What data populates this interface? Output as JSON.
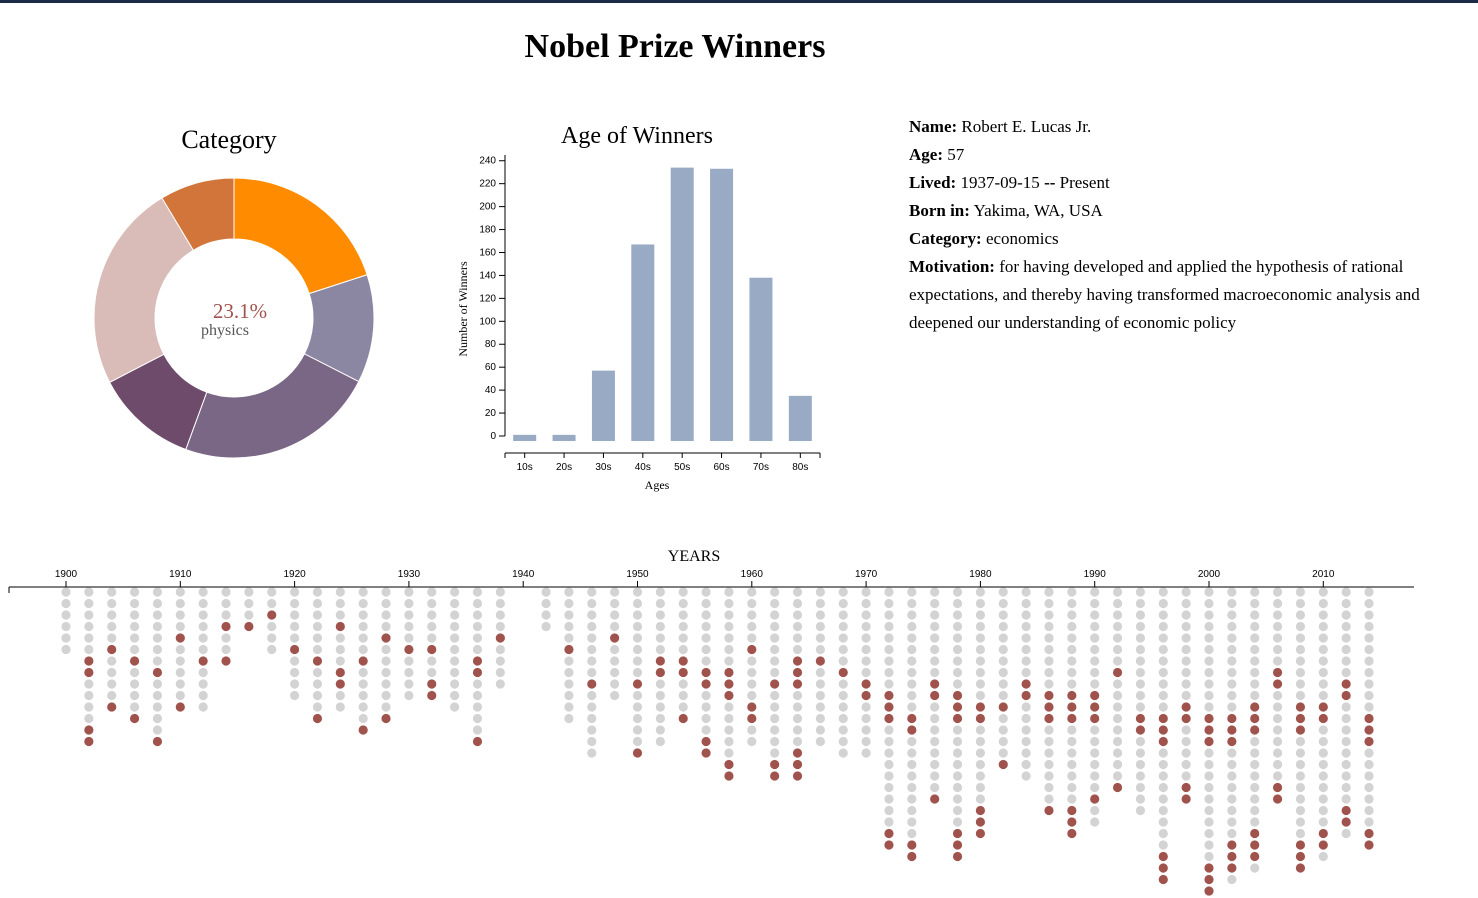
{
  "page": {
    "title": "Nobel Prize Winners"
  },
  "info": {
    "name_label": "Name:",
    "name": "Robert E. Lucas Jr.",
    "age_label": "Age:",
    "age": "57",
    "lived_label": "Lived:",
    "lived_from": "1937-09-15",
    "lived_sep": "--",
    "lived_to": "Present",
    "born_label": "Born in:",
    "born": "Yakima, WA, USA",
    "category_label": "Category:",
    "category": "economics",
    "motivation_label": "Motivation:",
    "motivation": "for having developed and applied the hypothesis of rational expectations, and thereby having transformed macroeconomic analysis and deepened our understanding of economic policy"
  },
  "colors": {
    "histogram_bar": "#98aac4",
    "dot_default": "#d3d3d3",
    "dot_highlight": "#a0534d",
    "center_percent": "#a0534d",
    "topbar": "#1b2a47"
  },
  "chart_data": [
    {
      "type": "pie",
      "variant": "donut",
      "title": "Category",
      "center_value": "23.1%",
      "center_label": "physics",
      "slices": [
        {
          "value": 20.0,
          "color": "#ff8c00"
        },
        {
          "value": 12.5,
          "color": "#8b87a2"
        },
        {
          "value": 23.1,
          "color": "#7a6685"
        },
        {
          "value": 11.8,
          "color": "#6e4a6b"
        },
        {
          "value": 24.0,
          "color": "#d9bcb7"
        },
        {
          "value": 8.6,
          "color": "#d2753b"
        }
      ]
    },
    {
      "type": "bar",
      "title": "Age of Winners",
      "xlabel": "Ages",
      "ylabel": "Number of Winners",
      "categories": [
        "10s",
        "20s",
        "30s",
        "40s",
        "50s",
        "60s",
        "70s",
        "80s"
      ],
      "values": [
        1,
        1,
        57,
        167,
        234,
        233,
        138,
        35
      ],
      "ylim": [
        0,
        245
      ],
      "yticks": [
        0,
        20,
        40,
        60,
        80,
        100,
        120,
        140,
        160,
        180,
        200,
        220,
        240
      ]
    },
    {
      "type": "scatter",
      "variant": "dot-timeline",
      "xlabel": "YEARS",
      "xticks": [
        1900,
        1910,
        1920,
        1930,
        1940,
        1950,
        1960,
        1970,
        1980,
        1990,
        2000,
        2010
      ],
      "xlim": [
        1900,
        2014
      ],
      "years": [
        1900,
        1902,
        1904,
        1906,
        1908,
        1910,
        1912,
        1914,
        1916,
        1918,
        1920,
        1922,
        1924,
        1926,
        1928,
        1930,
        1932,
        1934,
        1936,
        1938,
        1942,
        1944,
        1946,
        1948,
        1950,
        1952,
        1954,
        1956,
        1958,
        1960,
        1962,
        1964,
        1966,
        1968,
        1970,
        1972,
        1974,
        1976,
        1978,
        1980,
        1982,
        1984,
        1986,
        1988,
        1990,
        1992,
        1994,
        1996,
        1998,
        2000,
        2002,
        2004,
        2006,
        2008,
        2010,
        2012,
        2014
      ],
      "counts": [
        6,
        14,
        11,
        12,
        14,
        11,
        11,
        7,
        4,
        6,
        10,
        12,
        11,
        13,
        12,
        10,
        10,
        11,
        14,
        9,
        4,
        12,
        15,
        10,
        15,
        14,
        12,
        15,
        17,
        14,
        17,
        17,
        14,
        15,
        15,
        23,
        24,
        19,
        24,
        22,
        16,
        17,
        20,
        22,
        21,
        18,
        20,
        26,
        19,
        27,
        26,
        25,
        19,
        25,
        24,
        22,
        23
      ],
      "highlighted": [
        [
          6
        ],
        [
          6,
          7,
          12,
          13,
          14
        ],
        [
          5,
          10
        ],
        [
          6,
          11
        ],
        [
          7,
          13,
          14
        ],
        [
          4,
          10
        ],
        [
          6,
          11
        ],
        [
          3,
          6,
          7
        ],
        [
          3
        ],
        [
          2,
          6
        ],
        [
          5,
          10
        ],
        [
          6,
          11
        ],
        [
          3,
          7,
          8
        ],
        [
          6,
          12,
          13
        ],
        [
          4,
          11
        ],
        [
          5
        ],
        [
          5,
          8,
          9
        ],
        [
          11
        ],
        [
          6,
          7,
          13,
          14
        ],
        [
          4,
          9
        ],
        [
          4
        ],
        [
          5,
          12
        ],
        [
          8,
          15
        ],
        [
          4,
          10
        ],
        [
          8,
          14,
          15
        ],
        [
          6,
          7,
          14
        ],
        [
          6,
          7,
          11,
          12
        ],
        [
          7,
          8,
          13,
          14
        ],
        [
          7,
          8,
          9,
          15,
          16
        ],
        [
          5,
          10,
          11
        ],
        [
          8,
          15,
          16,
          17
        ],
        [
          6,
          7,
          8,
          14,
          15,
          16
        ],
        [
          6,
          14
        ],
        [
          7,
          16
        ],
        [
          8,
          9,
          16
        ],
        [
          9,
          10,
          11,
          21,
          22,
          23
        ],
        [
          11,
          12,
          22,
          23,
          24
        ],
        [
          8,
          9,
          18,
          19,
          20
        ],
        [
          9,
          10,
          11,
          21,
          22,
          23
        ],
        [
          10,
          11,
          19,
          20,
          21
        ],
        [
          10,
          15,
          16
        ],
        [
          8,
          9,
          17
        ],
        [
          9,
          10,
          11,
          19,
          20
        ],
        [
          9,
          10,
          11,
          19,
          20,
          21
        ],
        [
          9,
          10,
          11,
          18
        ],
        [
          7,
          17,
          18
        ],
        [
          11,
          12,
          22,
          23
        ],
        [
          11,
          12,
          13,
          23,
          24,
          25
        ],
        [
          10,
          11,
          17,
          18
        ],
        [
          11,
          12,
          13,
          24,
          25,
          26
        ],
        [
          11,
          12,
          13,
          22,
          23,
          24
        ],
        [
          10,
          11,
          12,
          21,
          22,
          23
        ],
        [
          7,
          8,
          17,
          18
        ],
        [
          10,
          11,
          12,
          22,
          23,
          24
        ],
        [
          10,
          11,
          21,
          22
        ],
        [
          8,
          9,
          19,
          20
        ],
        [
          11,
          12,
          13,
          21,
          22
        ]
      ]
    }
  ]
}
